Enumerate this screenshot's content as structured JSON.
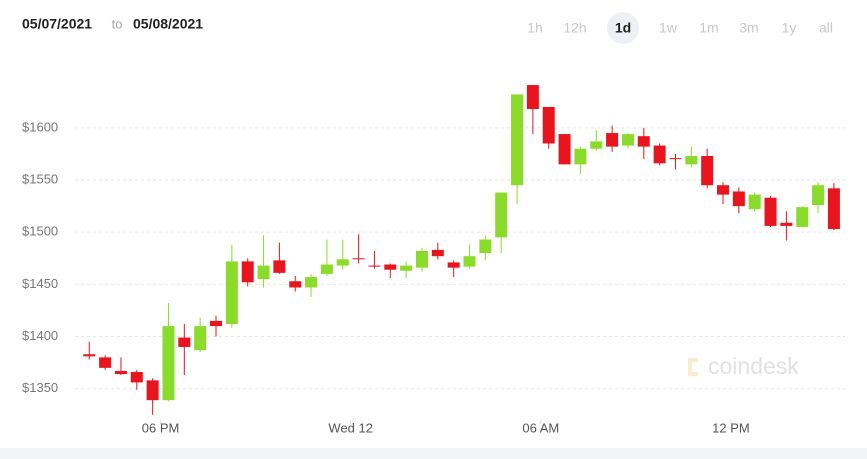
{
  "header": {
    "from": "05/07/2021",
    "to_word": "to",
    "to": "05/08/2021"
  },
  "range_buttons": [
    "1h",
    "12h",
    "1d",
    "1w",
    "1m",
    "3m",
    "1y",
    "all"
  ],
  "selected_range": "1d",
  "watermark": "coindesk",
  "chart_data": {
    "type": "candlestick",
    "up_color": "#8bdc2a",
    "down_color": "#e8141e",
    "grid": true,
    "x": [
      -8.25,
      -7.75,
      -7.25,
      -6.75,
      -6.25,
      -5.75,
      -5.25,
      -4.75,
      -4.25,
      -3.75,
      -3.25,
      -2.75,
      -2.25,
      -1.75,
      -1.25,
      -0.75,
      -0.25,
      0.25,
      0.75,
      1.25,
      1.75,
      2.25,
      2.75,
      3.25,
      3.75,
      4.25,
      4.75,
      5.25,
      5.75,
      6.25,
      6.75,
      7.25,
      7.75,
      8.25,
      8.75,
      9.25,
      9.75,
      10.25,
      10.75,
      11.25,
      11.75,
      12.25,
      12.75,
      13.25,
      13.75,
      14.25,
      14.75,
      15.25
    ],
    "open": [
      1383,
      1380,
      1367,
      1366,
      1358,
      1339,
      1399,
      1387,
      1415,
      1412,
      1472,
      1455,
      1473,
      1453,
      1447,
      1460,
      1468,
      1475,
      1468,
      1469,
      1463,
      1466,
      1483,
      1471,
      1467,
      1480,
      1495,
      1545,
      1641,
      1620,
      1594,
      1565,
      1580,
      1595,
      1583,
      1592,
      1583,
      1571,
      1565,
      1573,
      1545,
      1539,
      1522,
      1533,
      1509,
      1505,
      1526,
      1542
    ],
    "high": [
      1395,
      1382,
      1380,
      1368,
      1360,
      1432,
      1412,
      1418,
      1420,
      1488,
      1475,
      1497,
      1490,
      1458,
      1460,
      1493,
      1493,
      1498,
      1482,
      1470,
      1472,
      1485,
      1490,
      1473,
      1488,
      1497,
      1538,
      1632,
      1641,
      1620,
      1594,
      1582,
      1598,
      1602,
      1595,
      1600,
      1585,
      1575,
      1582,
      1580,
      1548,
      1543,
      1538,
      1535,
      1520,
      1525,
      1548,
      1547
    ],
    "low": [
      1378,
      1368,
      1363,
      1349,
      1325,
      1338,
      1363,
      1385,
      1400,
      1408,
      1448,
      1447,
      1460,
      1443,
      1438,
      1458,
      1464,
      1470,
      1465,
      1456,
      1456,
      1462,
      1474,
      1457,
      1465,
      1473,
      1480,
      1527,
      1594,
      1580,
      1565,
      1556,
      1578,
      1577,
      1580,
      1570,
      1564,
      1560,
      1562,
      1542,
      1527,
      1518,
      1520,
      1505,
      1492,
      1505,
      1518,
      1502
    ],
    "close": [
      1381,
      1370,
      1364,
      1356,
      1339,
      1410,
      1390,
      1410,
      1410,
      1472,
      1452,
      1468,
      1461,
      1447,
      1457,
      1469,
      1474,
      1474,
      1467,
      1464,
      1468,
      1482,
      1477,
      1466,
      1477,
      1493,
      1538,
      1632,
      1618,
      1585,
      1565,
      1580,
      1587,
      1582,
      1594,
      1582,
      1566,
      1570,
      1573,
      1545,
      1536,
      1525,
      1536,
      1506,
      1506,
      1524,
      1545,
      1503
    ],
    "xlim": [
      -8.7,
      15.6
    ],
    "xticks": [
      {
        "value": -6,
        "label": "06 PM"
      },
      {
        "value": 0,
        "label": "Wed 12"
      },
      {
        "value": 6,
        "label": "06 AM"
      },
      {
        "value": 12,
        "label": "12 PM"
      }
    ],
    "ylim": [
      1320,
      1665
    ],
    "yticks": [
      {
        "value": 1350,
        "label": "$1350"
      },
      {
        "value": 1400,
        "label": "$1400"
      },
      {
        "value": 1450,
        "label": "$1450"
      },
      {
        "value": 1500,
        "label": "$1500"
      },
      {
        "value": 1550,
        "label": "$1550"
      },
      {
        "value": 1600,
        "label": "$1600"
      }
    ]
  }
}
